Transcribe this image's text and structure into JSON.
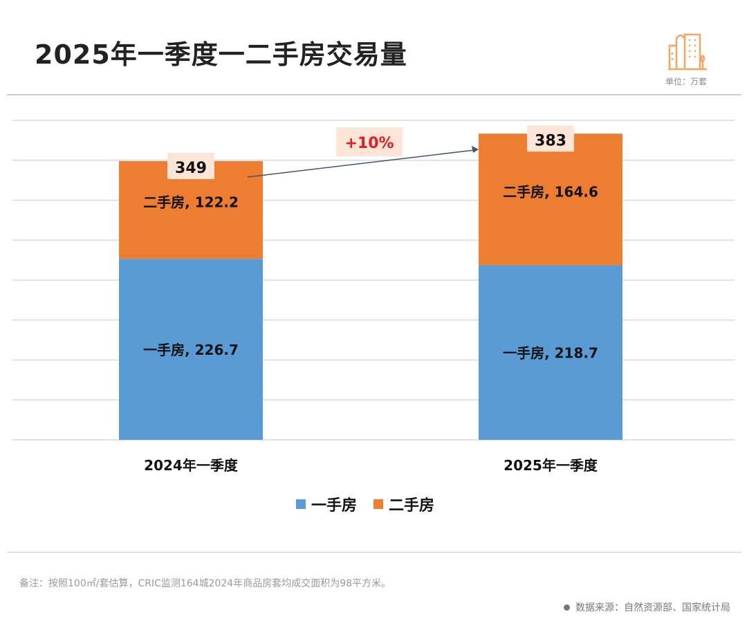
{
  "title": "2025年一季度一二手房交易量",
  "unit_label": "单位：万套",
  "icon": "city-buildings-icon",
  "note": "备注：按照100㎡/套估算，CRIC监测164城2024年商品房套均成交面积为98平方米。",
  "source": "数据来源：自然资源部、国家统计局",
  "chart_data": {
    "type": "bar",
    "stacked": true,
    "categories": [
      "2024年一季度",
      "2025年一季度"
    ],
    "series": [
      {
        "name": "一手房",
        "values": [
          226.7,
          218.7
        ],
        "color": "#5B9BD5"
      },
      {
        "name": "二手房",
        "values": [
          122.2,
          164.6
        ],
        "color": "#ED7D31"
      }
    ],
    "totals": [
      "349",
      "383"
    ],
    "data_labels": [
      [
        "一手房, 226.7",
        "一手房, 218.7"
      ],
      [
        "二手房, 122.2",
        "二手房, 164.6"
      ]
    ],
    "annotation": "+10%",
    "ylim": [
      0,
      400
    ],
    "grid": true,
    "legend": "bottom"
  }
}
